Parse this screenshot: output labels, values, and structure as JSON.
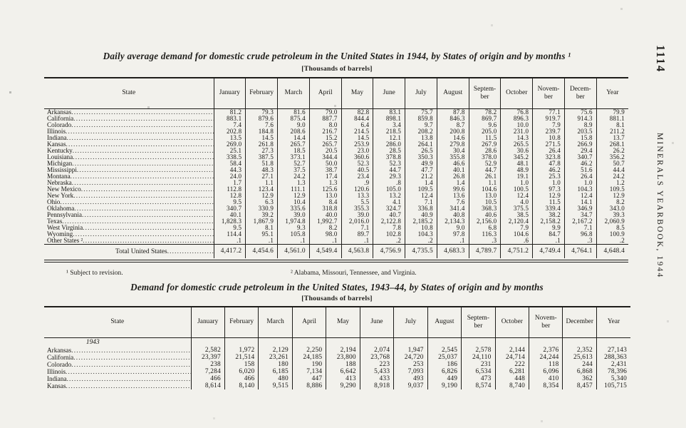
{
  "page": {
    "number": "1114",
    "running_title": "MINERALS YEARBOOK, 1944"
  },
  "footnotes": {
    "f1": "¹ Subject to revision.",
    "f2": "² Alabama, Missouri, Tennessee, and Virginia."
  },
  "table1": {
    "title": "Daily average demand for domestic crude petroleum in the United States in 1944, by States of origin and by months ¹",
    "subtitle": "[Thousands of barrels]",
    "columns": [
      "State",
      "January",
      "February",
      "March",
      "April",
      "May",
      "June",
      "July",
      "August",
      "Septem-\nber",
      "October",
      "Novem-\nber",
      "Decem-\nber",
      "Year"
    ],
    "rows": [
      {
        "state": "Arkansas",
        "values": [
          "81.2",
          "79.3",
          "81.6",
          "79.0",
          "82.8",
          "83.1",
          "75.7",
          "87.8",
          "78.2",
          "76.8",
          "77.1",
          "75.6",
          "79.9"
        ]
      },
      {
        "state": "California",
        "values": [
          "883.1",
          "879.6",
          "875.4",
          "887.7",
          "844.4",
          "898.1",
          "859.8",
          "846.3",
          "869.7",
          "896.3",
          "919.7",
          "914.3",
          "881.1"
        ]
      },
      {
        "state": "Colorado",
        "values": [
          "7.4",
          "7.6",
          "9.0",
          "8.0",
          "6.4",
          "3.4",
          "9.7",
          "8.7",
          "9.6",
          "10.0",
          "7.9",
          "8.9",
          "8.1"
        ]
      },
      {
        "state": "Illinois",
        "values": [
          "202.8",
          "184.8",
          "208.6",
          "216.7",
          "214.5",
          "218.5",
          "208.2",
          "200.8",
          "205.0",
          "231.0",
          "239.7",
          "203.5",
          "211.2"
        ]
      },
      {
        "state": "Indiana",
        "values": [
          "13.5",
          "14.5",
          "14.4",
          "15.2",
          "14.5",
          "12.1",
          "13.8",
          "14.6",
          "11.5",
          "14.3",
          "10.8",
          "15.8",
          "13.7"
        ]
      },
      {
        "state": "Kansas",
        "values": [
          "269.0",
          "261.8",
          "265.7",
          "265.7",
          "253.9",
          "286.0",
          "264.1",
          "279.8",
          "267.9",
          "265.5",
          "271.5",
          "266.9",
          "268.1"
        ]
      },
      {
        "state": "Kentucky",
        "values": [
          "25.1",
          "27.3",
          "18.5",
          "20.5",
          "23.0",
          "28.5",
          "26.5",
          "30.4",
          "28.6",
          "30.6",
          "26.4",
          "29.4",
          "26.2"
        ]
      },
      {
        "state": "Louisiana",
        "values": [
          "338.5",
          "387.5",
          "373.1",
          "344.4",
          "360.6",
          "378.8",
          "350.3",
          "355.8",
          "378.0",
          "345.2",
          "323.8",
          "340.7",
          "356.2"
        ]
      },
      {
        "state": "Michigan",
        "values": [
          "58.4",
          "51.8",
          "52.7",
          "50.0",
          "52.3",
          "52.3",
          "49.9",
          "46.6",
          "52.9",
          "48.1",
          "47.8",
          "46.2",
          "50.7"
        ]
      },
      {
        "state": "Mississippi",
        "values": [
          "44.3",
          "48.3",
          "37.5",
          "38.7",
          "40.5",
          "44.7",
          "47.7",
          "40.1",
          "44.7",
          "48.9",
          "46.2",
          "51.6",
          "44.4"
        ]
      },
      {
        "state": "Montana",
        "values": [
          "24.0",
          "27.1",
          "24.2",
          "17.4",
          "23.4",
          "29.3",
          "21.2",
          "26.8",
          "26.1",
          "19.1",
          "25.3",
          "26.4",
          "24.2"
        ]
      },
      {
        "state": "Nebraska",
        "values": [
          "1.7",
          "1.1",
          "1.3",
          "1.3",
          ".9",
          ".8",
          "1.4",
          "1.4",
          "1.1",
          "1.0",
          "1.0",
          "1.0",
          "1.2"
        ]
      },
      {
        "state": "New Mexico",
        "values": [
          "112.8",
          "123.4",
          "111.1",
          "125.6",
          "120.6",
          "105.0",
          "109.5",
          "99.6",
          "104.6",
          "100.5",
          "97.3",
          "104.3",
          "109.5"
        ]
      },
      {
        "state": "New York",
        "values": [
          "12.8",
          "12.9",
          "12.9",
          "13.0",
          "13.3",
          "13.2",
          "12.4",
          "13.6",
          "13.0",
          "12.4",
          "12.9",
          "12.4",
          "12.9"
        ]
      },
      {
        "state": "Ohio",
        "values": [
          "9.5",
          "6.3",
          "10.4",
          "8.4",
          "5.5",
          "4.1",
          "7.1",
          "7.6",
          "10.5",
          "4.0",
          "11.5",
          "14.1",
          "8.2"
        ]
      },
      {
        "state": "Oklahoma",
        "values": [
          "340.7",
          "330.9",
          "335.6",
          "318.8",
          "355.3",
          "324.7",
          "336.8",
          "341.4",
          "368.3",
          "375.5",
          "339.4",
          "346.9",
          "343.0"
        ]
      },
      {
        "state": "Pennsylvania",
        "values": [
          "40.1",
          "39.2",
          "39.0",
          "40.0",
          "39.0",
          "40.7",
          "40.9",
          "40.8",
          "40.6",
          "38.5",
          "38.2",
          "34.7",
          "39.3"
        ]
      },
      {
        "state": "Texas",
        "values": [
          "1,828.3",
          "1,867.9",
          "1,974.8",
          "1,992.7",
          "2,016.0",
          "2,122.8",
          "2,185.2",
          "2,134.3",
          "2,156.0",
          "2,120.4",
          "2,158.2",
          "2,167.2",
          "2,060.9"
        ]
      },
      {
        "state": "West Virginia",
        "values": [
          "9.5",
          "8.1",
          "9.3",
          "8.2",
          "7.1",
          "7.8",
          "10.8",
          "9.0",
          "6.8",
          "7.9",
          "9.9",
          "7.1",
          "8.5"
        ]
      },
      {
        "state": "Wyoming",
        "values": [
          "114.4",
          "95.1",
          "105.8",
          "98.0",
          "89.7",
          "102.8",
          "104.3",
          "97.8",
          "116.3",
          "104.6",
          "84.7",
          "96.8",
          "100.9"
        ]
      },
      {
        "state": "Other States ²",
        "values": [
          ".1",
          ".1",
          ".1",
          ".1",
          ".1",
          ".2",
          ".2",
          ".1",
          ".3",
          ".6",
          ".1",
          ".3",
          ".2"
        ]
      }
    ],
    "total_row": {
      "state": "Total United States",
      "values": [
        "4,417.2",
        "4,454.6",
        "4,561.0",
        "4,549.4",
        "4,563.8",
        "4,756.9",
        "4,735.5",
        "4,683.3",
        "4,789.7",
        "4,751.2",
        "4,749.4",
        "4,764.1",
        "4,648.4"
      ]
    }
  },
  "table2": {
    "title": "Demand for domestic crude petroleum in the United States, 1943–44, by States of origin and by months",
    "subtitle": "[Thousands of barrels]",
    "section_label": "1943",
    "columns": [
      "State",
      "January",
      "February",
      "March",
      "April",
      "May",
      "June",
      "July",
      "August",
      "Septem-\nber",
      "October",
      "Novem-\nber",
      "December",
      "Year"
    ],
    "rows": [
      {
        "state": "Arkansas",
        "values": [
          "2,582",
          "1,972",
          "2,129",
          "2,250",
          "2,194",
          "2,074",
          "1,947",
          "2,545",
          "2,578",
          "2,144",
          "2,376",
          "2,352",
          "27,143"
        ]
      },
      {
        "state": "California",
        "values": [
          "23,397",
          "21,514",
          "23,261",
          "24,185",
          "23,800",
          "23,768",
          "24,720",
          "25,037",
          "24,110",
          "24,714",
          "24,244",
          "25,613",
          "288,363"
        ]
      },
      {
        "state": "Colorado",
        "values": [
          "238",
          "158",
          "180",
          "190",
          "188",
          "223",
          "253",
          "186",
          "231",
          "222",
          "118",
          "244",
          "2,431"
        ]
      },
      {
        "state": "Illinois",
        "values": [
          "7,284",
          "6,020",
          "6,185",
          "7,134",
          "6,642",
          "5,433",
          "7,093",
          "6,826",
          "6,534",
          "6,281",
          "6,096",
          "6,868",
          "78,396"
        ]
      },
      {
        "state": "Indiana",
        "values": [
          "466",
          "466",
          "480",
          "447",
          "413",
          "433",
          "493",
          "449",
          "473",
          "448",
          "410",
          "362",
          "5,340"
        ]
      },
      {
        "state": "Kansas",
        "values": [
          "8,614",
          "8,140",
          "9,515",
          "8,886",
          "9,290",
          "8,918",
          "9,037",
          "9,190",
          "8,574",
          "8,740",
          "8,354",
          "8,457",
          "105,715"
        ]
      }
    ]
  }
}
